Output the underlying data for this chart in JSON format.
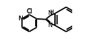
{
  "background_color": "#ffffff",
  "line_color": "#000000",
  "line_width": 1.3,
  "font_size": 6.5,
  "xlim": [
    0.0,
    1.0
  ],
  "ylim": [
    0.1,
    0.9
  ]
}
